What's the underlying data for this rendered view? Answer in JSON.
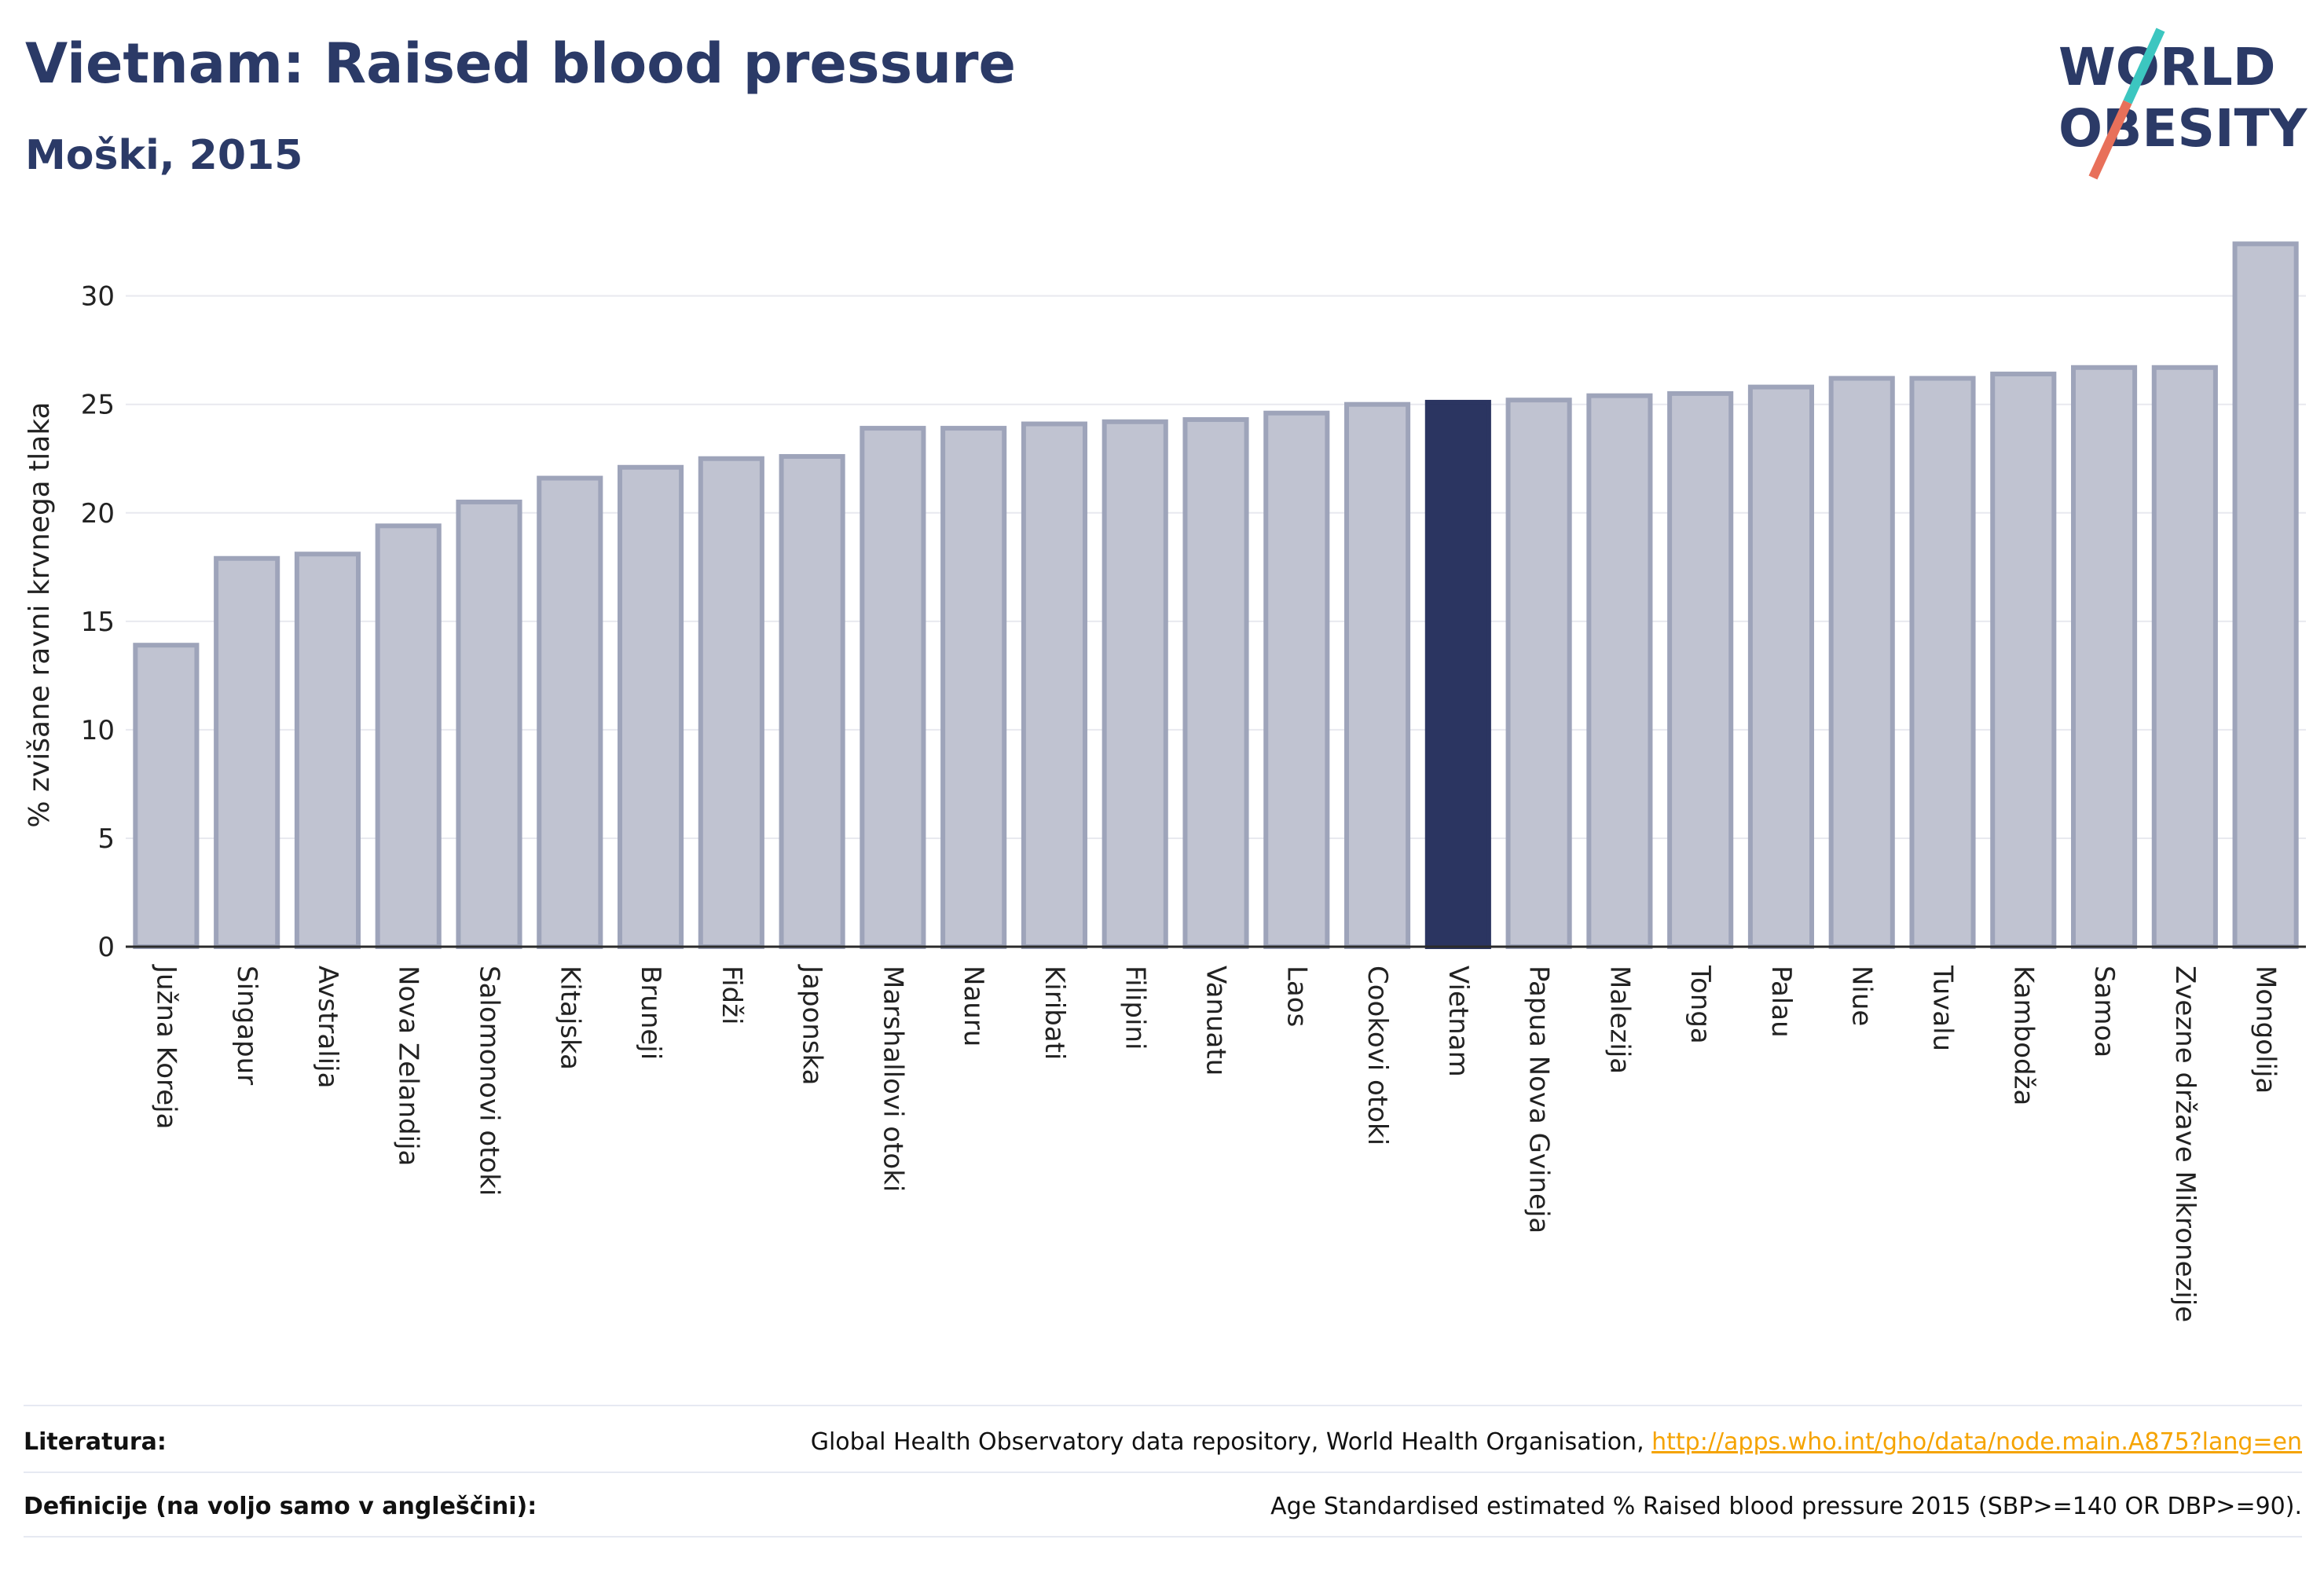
{
  "header": {
    "title": "Vietnam: Raised blood pressure",
    "subtitle": "Moški, 2015"
  },
  "logo": {
    "line1": "WORLD",
    "line2": "OBESITY",
    "colors": {
      "text": "#2b3a67",
      "slash_top": "#3cc6c0",
      "slash_bottom": "#e8705a"
    }
  },
  "chart_data": {
    "type": "bar",
    "ylabel": "% zvišane ravni krvnega tlaka",
    "xlabel": "",
    "ylim": [
      0,
      33.5
    ],
    "yticks": [
      0,
      5,
      10,
      15,
      20,
      25,
      30
    ],
    "grid": true,
    "highlight": "Vietnam",
    "colors": {
      "bar": "#c0c3d1",
      "bar_stroke": "#9ea4ba",
      "highlight": "#2b3561",
      "axis": "#2b2b2b",
      "grid": "#e8e9ef"
    },
    "categories": [
      "Južna Koreja",
      "Singapur",
      "Avstralija",
      "Nova Zelandija",
      "Salomonovi otoki",
      "Kitajska",
      "Bruneji",
      "Fidži",
      "Japonska",
      "Marshallovi otoki",
      "Nauru",
      "Kiribati",
      "Filipini",
      "Vanuatu",
      "Laos",
      "Cookovi otoki",
      "Vietnam",
      "Papua Nova Gvineja",
      "Malezija",
      "Tonga",
      "Palau",
      "Niue",
      "Tuvalu",
      "Kambodža",
      "Samoa",
      "Zvezne države Mikronezije",
      "Mongolija"
    ],
    "values": [
      13.9,
      17.9,
      18.1,
      19.4,
      20.5,
      21.6,
      22.1,
      22.5,
      22.6,
      23.9,
      23.9,
      24.1,
      24.2,
      24.3,
      24.6,
      25.0,
      25.1,
      25.2,
      25.4,
      25.5,
      25.8,
      26.2,
      26.2,
      26.4,
      26.7,
      26.7,
      32.4
    ]
  },
  "footer": {
    "sources_label": "Literatura:",
    "sources_text": "Global Health Observatory data repository, World Health Organisation, ",
    "sources_link": "http://apps.who.int/gho/data/node.main.A875?lang=en",
    "definitions_label": "Definicije (na voljo samo v angleščini):",
    "definitions_text": "Age Standardised estimated % Raised blood pressure 2015 (SBP>=140 OR DBP>=90)."
  }
}
